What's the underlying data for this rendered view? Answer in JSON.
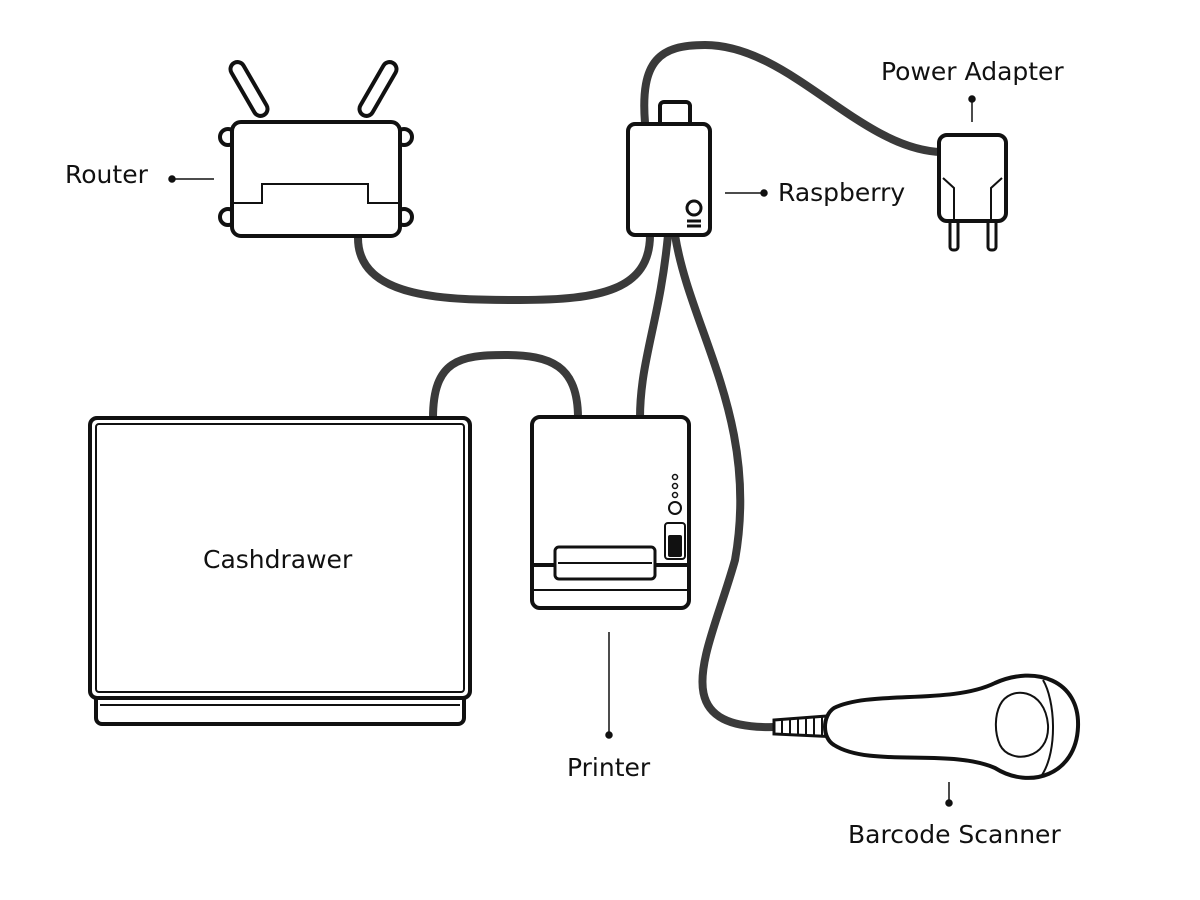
{
  "labels": {
    "router": "Router",
    "raspberry": "Raspberry",
    "power_adapter": "Power Adapter",
    "cashdrawer": "Cashdrawer",
    "printer": "Printer",
    "barcode_scanner": "Barcode Scanner"
  },
  "colors": {
    "background": "#ffffff",
    "outline": "#111111",
    "cable": "#3a3a3a"
  }
}
